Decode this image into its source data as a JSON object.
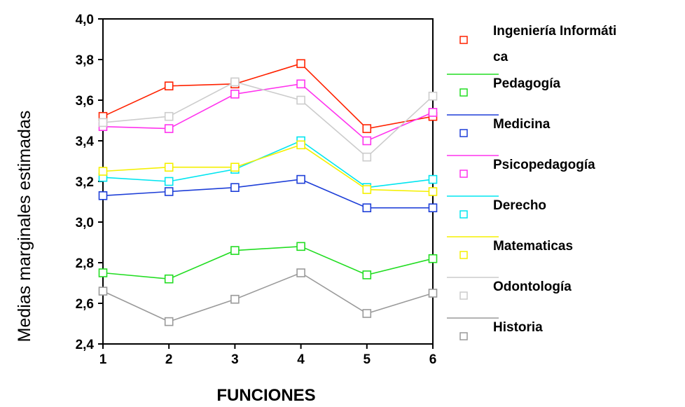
{
  "chart_data": {
    "type": "line",
    "xlabel": "FUNCIONES",
    "ylabel": "Medias marginales estimadas",
    "x": [
      1,
      2,
      3,
      4,
      5,
      6
    ],
    "x_tick_labels": [
      "1",
      "2",
      "3",
      "4",
      "5",
      "6"
    ],
    "ylim": [
      2.4,
      4.0
    ],
    "y_ticks": [
      2.4,
      2.6,
      2.8,
      3.0,
      3.2,
      3.4,
      3.6,
      3.8,
      4.0
    ],
    "y_tick_labels": [
      "2,4",
      "2,6",
      "2,8",
      "3,0",
      "3,2",
      "3,4",
      "3,6",
      "3,8",
      "4,0"
    ],
    "grid": false,
    "legend_position": "right",
    "marker": "hollow-square",
    "series": [
      {
        "name": "Ingeniería Informática",
        "legend_lines": [
          "Ingeniería Informáti",
          "ca"
        ],
        "color": "#ff2200",
        "values": [
          3.52,
          3.67,
          3.68,
          3.78,
          3.46,
          3.52
        ]
      },
      {
        "name": "Pedagogía",
        "legend_lines": [
          "Pedagogía"
        ],
        "color": "#22dd22",
        "values": [
          2.75,
          2.72,
          2.86,
          2.88,
          2.74,
          2.82
        ]
      },
      {
        "name": "Medicina",
        "legend_lines": [
          "Medicina"
        ],
        "color": "#1e3fd8",
        "values": [
          3.13,
          3.15,
          3.17,
          3.21,
          3.07,
          3.07
        ]
      },
      {
        "name": "Psicopedagogía",
        "legend_lines": [
          "Psicopedagogía"
        ],
        "color": "#ff33ee",
        "values": [
          3.47,
          3.46,
          3.63,
          3.68,
          3.4,
          3.54
        ]
      },
      {
        "name": "Derecho",
        "legend_lines": [
          "Derecho"
        ],
        "color": "#00e5f0",
        "values": [
          3.22,
          3.2,
          3.26,
          3.4,
          3.17,
          3.21
        ]
      },
      {
        "name": "Matematicas",
        "legend_lines": [
          "Matematicas"
        ],
        "color": "#f5f000",
        "values": [
          3.25,
          3.27,
          3.27,
          3.38,
          3.16,
          3.15
        ]
      },
      {
        "name": "Odontología",
        "legend_lines": [
          "Odontología"
        ],
        "color": "#cccccc",
        "values": [
          3.49,
          3.52,
          3.69,
          3.6,
          3.32,
          3.62
        ]
      },
      {
        "name": "Historia",
        "legend_lines": [
          "Historia"
        ],
        "color": "#9a9a9a",
        "values": [
          2.66,
          2.51,
          2.62,
          2.75,
          2.55,
          2.65
        ]
      }
    ]
  }
}
